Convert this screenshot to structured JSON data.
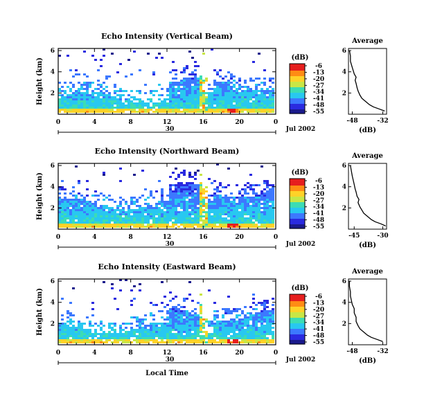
{
  "chart_data": [
    {
      "type": "heatmap",
      "title": "Echo Intensity (Vertical Beam)",
      "ylabel": "Height (km)",
      "yticks": [
        "2",
        "4",
        "6"
      ],
      "xticks": [
        "0",
        "4",
        "8",
        "12",
        "16",
        "20",
        "0"
      ],
      "day_label": "30",
      "date_label": "Jul 2002",
      "xlim": [
        0,
        24
      ],
      "ylim": [
        0,
        6.2
      ],
      "colorbar": {
        "unit": "(dB)",
        "ticks": [
          "-6",
          "-13",
          "-20",
          "-27",
          "-34",
          "-41",
          "-48",
          "-55"
        ]
      },
      "average": {
        "title": "Average",
        "xlabel": "(dB)",
        "xticks": [
          "-48",
          "-32"
        ],
        "yticks": [
          "2",
          "4",
          "6"
        ],
        "xlim": [
          -50,
          -30
        ],
        "profile": [
          [
            0.3,
            -31
          ],
          [
            0.5,
            -34
          ],
          [
            0.7,
            -37
          ],
          [
            0.9,
            -39
          ],
          [
            1.2,
            -41
          ],
          [
            1.5,
            -43
          ],
          [
            1.8,
            -44
          ],
          [
            2.2,
            -45
          ],
          [
            2.5,
            -45.5
          ],
          [
            2.9,
            -46
          ],
          [
            3.2,
            -46.5
          ],
          [
            3.5,
            -46
          ],
          [
            3.8,
            -47
          ],
          [
            4.1,
            -47.5
          ],
          [
            4.4,
            -48
          ],
          [
            4.7,
            -48.5
          ],
          [
            5.0,
            -49
          ],
          [
            5.5,
            -49
          ],
          [
            6.0,
            -49.5
          ]
        ]
      }
    },
    {
      "type": "heatmap",
      "title": "Echo Intensity (Northward Beam)",
      "ylabel": "Height (km)",
      "yticks": [
        "2",
        "4",
        "6"
      ],
      "xticks": [
        "0",
        "4",
        "8",
        "12",
        "16",
        "20",
        "0"
      ],
      "day_label": "30",
      "date_label": "Jul 2002",
      "xlim": [
        0,
        24
      ],
      "ylim": [
        0,
        6.2
      ],
      "colorbar": {
        "unit": "(dB)",
        "ticks": [
          "-6",
          "-13",
          "-20",
          "-27",
          "-34",
          "-41",
          "-48",
          "-55"
        ]
      },
      "average": {
        "title": "Average",
        "xlabel": "(dB)",
        "xticks": [
          "-45",
          "-30"
        ],
        "yticks": [
          "2",
          "4",
          "6"
        ],
        "xlim": [
          -48,
          -28
        ],
        "profile": [
          [
            0.3,
            -28.5
          ],
          [
            0.5,
            -31
          ],
          [
            0.7,
            -34
          ],
          [
            0.9,
            -36
          ],
          [
            1.2,
            -38
          ],
          [
            1.5,
            -40
          ],
          [
            1.8,
            -41
          ],
          [
            2.1,
            -42
          ],
          [
            2.5,
            -43
          ],
          [
            2.8,
            -42.5
          ],
          [
            3.1,
            -43.5
          ],
          [
            3.5,
            -44
          ],
          [
            3.8,
            -44.5
          ],
          [
            4.2,
            -45
          ],
          [
            4.6,
            -45.5
          ],
          [
            5.0,
            -46
          ],
          [
            5.5,
            -46.5
          ],
          [
            6.0,
            -47
          ]
        ]
      }
    },
    {
      "type": "heatmap",
      "title": "Echo Intensity (Eastward Beam)",
      "ylabel": "Height (km)",
      "yticks": [
        "2",
        "4",
        "6"
      ],
      "xticks": [
        "0",
        "4",
        "8",
        "12",
        "16",
        "20",
        "0"
      ],
      "day_label": "30",
      "date_label": "Jul 2002",
      "xlabel": "Local Time",
      "xlim": [
        0,
        24
      ],
      "ylim": [
        0,
        6.2
      ],
      "colorbar": {
        "unit": "(dB)",
        "ticks": [
          "-6",
          "-13",
          "-20",
          "-27",
          "-34",
          "-41",
          "-48",
          "-55"
        ]
      },
      "average": {
        "title": "Average",
        "xlabel": "(dB)",
        "xticks": [
          "-48",
          "-32"
        ],
        "yticks": [
          "2",
          "4",
          "6"
        ],
        "xlim": [
          -50,
          -30
        ],
        "profile": [
          [
            0.3,
            -32
          ],
          [
            0.5,
            -35
          ],
          [
            0.7,
            -38
          ],
          [
            0.9,
            -40
          ],
          [
            1.2,
            -42
          ],
          [
            1.5,
            -44
          ],
          [
            1.8,
            -45
          ],
          [
            2.2,
            -46
          ],
          [
            2.6,
            -46
          ],
          [
            3.0,
            -47
          ],
          [
            3.4,
            -47
          ],
          [
            3.8,
            -48
          ],
          [
            4.2,
            -48.5
          ],
          [
            4.6,
            -49
          ],
          [
            5.0,
            -49
          ],
          [
            5.5,
            -49.5
          ],
          [
            6.0,
            -49.5
          ]
        ]
      }
    }
  ],
  "colors": {
    "palette": [
      "#1a1a8c",
      "#2a2ae0",
      "#3c78ff",
      "#28c8f0",
      "#3cdcb4",
      "#c8e646",
      "#ffd228",
      "#ff8c14",
      "#e61e1e"
    ]
  }
}
